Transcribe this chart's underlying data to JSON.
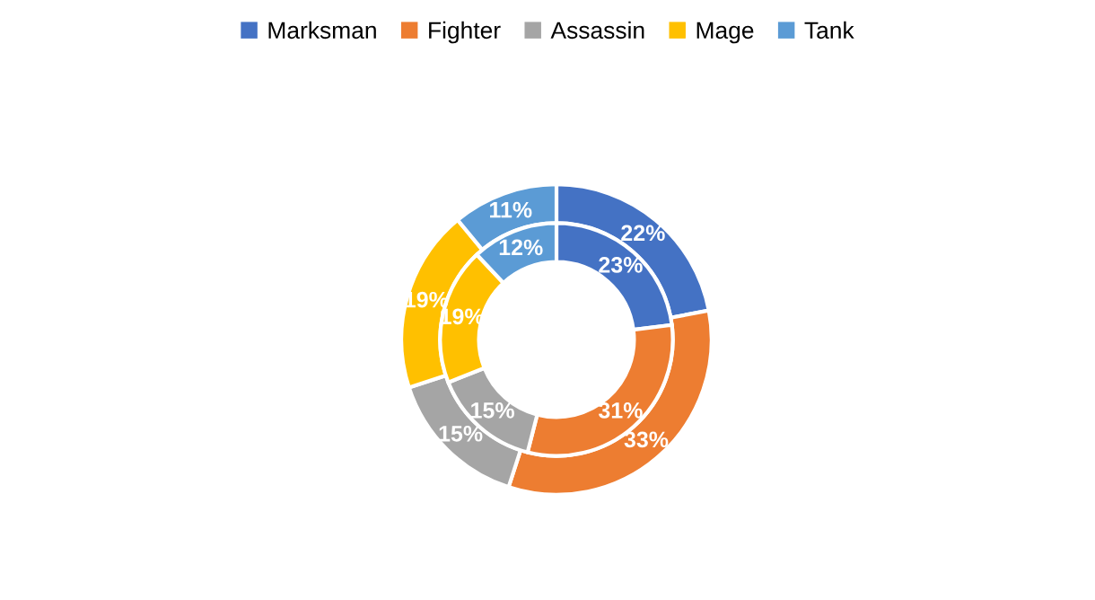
{
  "chart_data": {
    "type": "donut",
    "categories": [
      "Marksman",
      "Fighter",
      "Assassin",
      "Mage",
      "Tank"
    ],
    "colors": [
      "#4472c4",
      "#ed7d31",
      "#a5a5a5",
      "#ffc000",
      "#5b9bd5"
    ],
    "series": [
      {
        "values": [
          22,
          33,
          15,
          19,
          11
        ],
        "value_labels": [
          "22%",
          "33%",
          "15%",
          "19%",
          "11%"
        ]
      },
      {
        "values": [
          23,
          31,
          15,
          19,
          12
        ],
        "value_labels": [
          "23%",
          "31%",
          "15%",
          "19%",
          "12%"
        ]
      }
    ],
    "legend": "top"
  }
}
